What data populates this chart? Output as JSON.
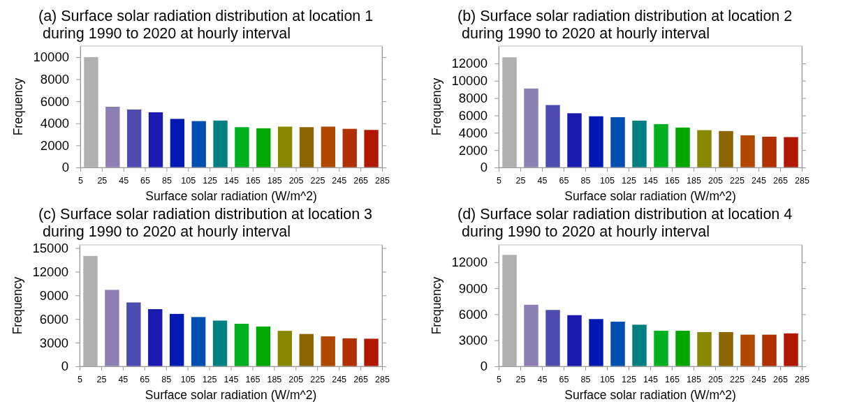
{
  "chart_data": [
    {
      "type": "histogram",
      "title": "(a) Surface solar radiation distribution at location 1\n during 1990 to 2020 at hourly interval",
      "xlabel": "Surface solar radiation (W/m^2)",
      "ylabel": "Frequency",
      "bins": [
        5,
        25,
        45,
        65,
        85,
        105,
        125,
        145,
        165,
        185,
        205,
        225,
        245,
        265,
        285
      ],
      "values": [
        10000,
        5500,
        5250,
        5000,
        4400,
        4200,
        4250,
        3650,
        3550,
        3700,
        3650,
        3700,
        3500,
        3400
      ],
      "colors": [
        "#b0b0b0",
        "#8c7fb4",
        "#4b4bb0",
        "#1a19b0",
        "#0019b4",
        "#004fb0",
        "#008080",
        "#00b020",
        "#00a800",
        "#888800",
        "#8c6400",
        "#b04800",
        "#b03000",
        "#b01800"
      ],
      "xlim": [
        5,
        285
      ],
      "xticks": [
        5,
        25,
        45,
        65,
        85,
        105,
        125,
        145,
        165,
        185,
        205,
        225,
        245,
        265,
        285
      ],
      "ylim": [
        0,
        11000
      ],
      "yticks": [
        0,
        2000,
        4000,
        6000,
        8000,
        10000
      ],
      "grid": false
    },
    {
      "type": "histogram",
      "title": "(b) Surface solar radiation distribution at location 2\n during 1990 to 2020 at hourly interval",
      "xlabel": "Surface solar radiation (W/m^2)",
      "ylabel": "Frequency",
      "bins": [
        5,
        25,
        45,
        65,
        85,
        105,
        125,
        145,
        165,
        185,
        205,
        225,
        245,
        265,
        285
      ],
      "values": [
        12700,
        9100,
        7200,
        6250,
        5900,
        5800,
        5400,
        5000,
        4600,
        4300,
        4200,
        3700,
        3550,
        3500
      ],
      "colors": [
        "#b0b0b0",
        "#8c7fb4",
        "#4b4bb0",
        "#1a19b0",
        "#0019b4",
        "#004fb0",
        "#008080",
        "#00b020",
        "#00a800",
        "#888800",
        "#8c6400",
        "#b04800",
        "#b03000",
        "#b01800"
      ],
      "xlim": [
        5,
        285
      ],
      "xticks": [
        5,
        25,
        45,
        65,
        85,
        105,
        125,
        145,
        165,
        185,
        205,
        225,
        245,
        265,
        285
      ],
      "ylim": [
        0,
        14000
      ],
      "yticks": [
        0,
        2000,
        4000,
        6000,
        8000,
        10000,
        12000
      ],
      "grid": false
    },
    {
      "type": "histogram",
      "title": "(c) Surface solar radiation distribution at location 3\n during 1990 to 2020 at hourly interval",
      "xlabel": "Surface solar radiation (W/m^2)",
      "ylabel": "Frequency",
      "bins": [
        5,
        25,
        45,
        65,
        85,
        105,
        125,
        145,
        165,
        185,
        205,
        225,
        245,
        265,
        285
      ],
      "values": [
        14000,
        9700,
        8100,
        7250,
        6650,
        6250,
        5800,
        5400,
        5050,
        4500,
        4100,
        3800,
        3550,
        3500
      ],
      "colors": [
        "#b0b0b0",
        "#8c7fb4",
        "#4b4bb0",
        "#1a19b0",
        "#0019b4",
        "#004fb0",
        "#008080",
        "#00b020",
        "#00a800",
        "#888800",
        "#8c6400",
        "#b04800",
        "#b03000",
        "#b01800"
      ],
      "xlim": [
        5,
        285
      ],
      "xticks": [
        5,
        25,
        45,
        65,
        85,
        105,
        125,
        145,
        165,
        185,
        205,
        225,
        245,
        265,
        285
      ],
      "ylim": [
        0,
        15400
      ],
      "yticks": [
        0,
        3000,
        6000,
        9000,
        12000,
        15000
      ],
      "grid": false
    },
    {
      "type": "histogram",
      "title": "(d) Surface solar radiation distribution at location 4\n during 1990 to 2020 at hourly interval",
      "xlabel": "Surface solar radiation (W/m^2)",
      "ylabel": "Frequency",
      "bins": [
        5,
        25,
        45,
        65,
        85,
        105,
        125,
        145,
        165,
        185,
        205,
        225,
        245,
        265,
        285
      ],
      "values": [
        12850,
        7100,
        6500,
        5900,
        5450,
        5150,
        4800,
        4100,
        4100,
        3950,
        3950,
        3650,
        3650,
        3800
      ],
      "colors": [
        "#b0b0b0",
        "#8c7fb4",
        "#4b4bb0",
        "#1a19b0",
        "#0019b4",
        "#004fb0",
        "#008080",
        "#00b020",
        "#00a800",
        "#888800",
        "#8c6400",
        "#b04800",
        "#b03000",
        "#b01800"
      ],
      "xlim": [
        5,
        285
      ],
      "xticks": [
        5,
        25,
        45,
        65,
        85,
        105,
        125,
        145,
        165,
        185,
        205,
        225,
        245,
        265,
        285
      ],
      "ylim": [
        0,
        14000
      ],
      "yticks": [
        0,
        3000,
        6000,
        9000,
        12000
      ],
      "grid": false
    }
  ]
}
